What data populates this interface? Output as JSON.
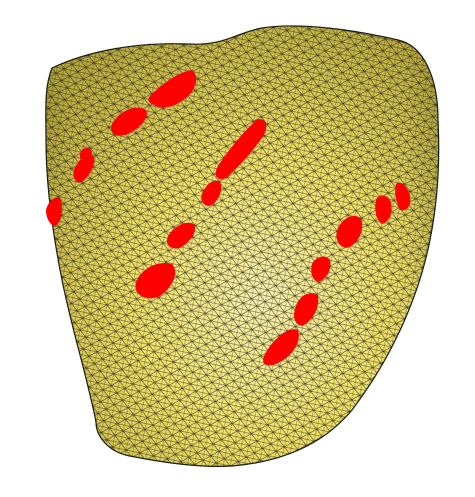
{
  "scene": {
    "background_color": "#ffffff",
    "surface_color": "#f2e36a",
    "surface_highlight_color": "#fbf4b0",
    "surface_shadow_color": "#b8a93e",
    "mesh_line_color": "#1a1a10",
    "marker_color": "#ff0000",
    "marker_count": 15
  }
}
